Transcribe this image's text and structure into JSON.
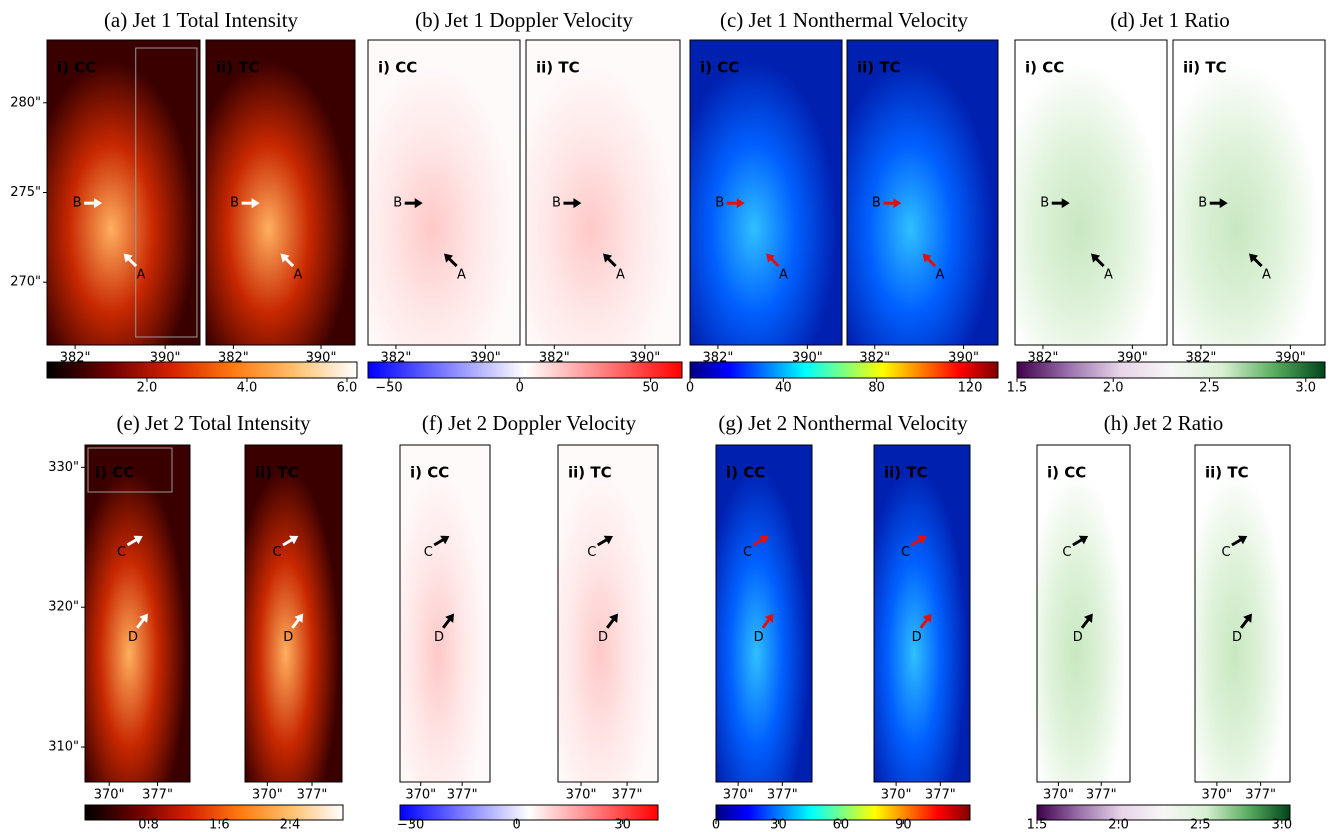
{
  "figure": {
    "rows": [
      {
        "xlim": [
          379.5,
          393.1
        ],
        "xticks": [
          {
            "value": 382,
            "label": "382\""
          },
          {
            "value": 390,
            "label": "390\""
          }
        ],
        "ylim": [
          266.5,
          283.5
        ],
        "yticks": [
          {
            "value": 270,
            "label": "270\""
          },
          {
            "value": 275,
            "label": "275\""
          },
          {
            "value": 280,
            "label": "280\""
          }
        ],
        "markers": [
          "B",
          "A"
        ],
        "panels": [
          {
            "title": "(a) Jet 1 Total Intensity",
            "subplots": [
              "i) CC",
              "ii) TC"
            ],
            "colormap": "hot",
            "colorbar": {
              "lim": [
                0,
                6.2
              ],
              "ticks": [
                {
                  "value": 2,
                  "label": "2.0"
                },
                {
                  "value": 4,
                  "label": "4.0"
                },
                {
                  "value": 6,
                  "label": "6.0"
                }
              ]
            }
          },
          {
            "title": "(b) Jet 1 Doppler Velocity",
            "subplots": [
              "i) CC",
              "ii) TC"
            ],
            "colormap": "bwr",
            "colorbar": {
              "lim": [
                -58,
                62
              ],
              "ticks": [
                {
                  "value": -50,
                  "label": "−50"
                },
                0,
                50
              ]
            }
          },
          {
            "title": "(c) Jet 1 Nonthermal Velocity",
            "subplots": [
              "i) CC",
              "ii) TC"
            ],
            "colormap": "jet",
            "colorbar": {
              "lim": [
                0,
                132
              ],
              "ticks": [
                0,
                40,
                80,
                120
              ]
            }
          },
          {
            "title": "(d) Jet 1 Ratio",
            "subplots": [
              "i) CC",
              "ii) TC"
            ],
            "colormap": "PRGn",
            "colorbar": {
              "lim": [
                1.5,
                3.1
              ],
              "ticks": [
                1.5,
                {
                  "value": 2,
                  "label": "2.0"
                },
                2.5,
                {
                  "value": 3,
                  "label": "3.0"
                }
              ]
            }
          }
        ]
      },
      {
        "xlim": [
          366.5,
          381.7
        ],
        "xticks": [
          {
            "value": 370,
            "label": "370\""
          },
          {
            "value": 377,
            "label": "377\""
          }
        ],
        "ylim": [
          307.5,
          331.6
        ],
        "yticks": [
          {
            "value": 310,
            "label": "310\""
          },
          {
            "value": 320,
            "label": "320\""
          },
          {
            "value": 330,
            "label": "330\""
          }
        ],
        "markers": [
          "C",
          "D"
        ],
        "panels": [
          {
            "title": "(e) Jet 2 Total Intensity",
            "subplots": [
              "i) CC",
              "ii) TC"
            ],
            "colormap": "hot",
            "colorbar": {
              "lim": [
                0.08,
                3.0
              ],
              "ticks": [
                0.8,
                1.6,
                2.4
              ]
            }
          },
          {
            "title": "(f) Jet 2 Doppler Velocity",
            "subplots": [
              "i) CC",
              "ii) TC"
            ],
            "colormap": "bwr",
            "colorbar": {
              "lim": [
                -33,
                40
              ],
              "ticks": [
                {
                  "value": -30,
                  "label": "−30"
                },
                0,
                30
              ]
            }
          },
          {
            "title": "(g) Jet 2 Nonthermal Velocity",
            "subplots": [
              "i) CC",
              "ii) TC"
            ],
            "colormap": "jet",
            "colorbar": {
              "lim": [
                0,
                122
              ],
              "ticks": [
                0,
                30,
                60,
                90
              ]
            }
          },
          {
            "title": "(h) Jet 2 Ratio",
            "subplots": [
              "i) CC",
              "ii) TC"
            ],
            "colormap": "PRGn",
            "colorbar": {
              "lim": [
                1.5,
                3.05
              ],
              "ticks": [
                1.5,
                {
                  "value": 2,
                  "label": "2.0"
                },
                2.5,
                {
                  "value": 3,
                  "label": "3.0"
                }
              ]
            }
          }
        ]
      }
    ]
  }
}
